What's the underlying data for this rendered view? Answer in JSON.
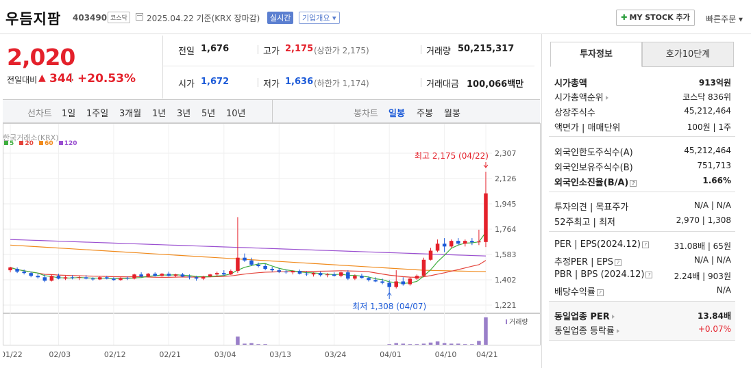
{
  "header": {
    "name": "우듬지팜",
    "code": "403490",
    "market": "코스닥",
    "date": "2025.04.22  기준(KRX 장마감)",
    "realtime": "실시간",
    "overview": "기업개요 ▾",
    "mystock": "MY STOCK 추가",
    "quick_order": "빠른주문 ▾"
  },
  "price": {
    "current": "2,020",
    "compare_label": "전일대비",
    "change": "344",
    "change_pct": "+20.53%"
  },
  "quote": {
    "prev_label": "전일",
    "prev": "1,676",
    "high_label": "고가",
    "high": "2,175",
    "upper_limit": "(상한가 2,175)",
    "volume_label": "거래량",
    "volume": "50,215,317",
    "open_label": "시가",
    "open": "1,672",
    "low_label": "저가",
    "low": "1,636",
    "lower_limit": "(하한가 1,174)",
    "amount_label": "거래대금",
    "amount": "100,066",
    "amount_unit": "백만"
  },
  "toolbar": {
    "line_label": "선차트",
    "line_items": [
      "1일",
      "1주일",
      "3개월",
      "1년",
      "3년",
      "5년",
      "10년"
    ],
    "candle_label": "봉차트",
    "candle_items": [
      "일봉",
      "주봉",
      "월봉"
    ]
  },
  "chart_data": {
    "type": "candlestick",
    "source": "한국거래소(KRX)",
    "legend": [
      "5",
      "20",
      "60",
      "120"
    ],
    "legend_colors": [
      "#3fae3f",
      "#e4433a",
      "#f08a1c",
      "#9a4fd0"
    ],
    "y_ticks": [
      2307,
      2126,
      1945,
      1764,
      1583,
      1402,
      1221
    ],
    "ylim": [
      1221,
      2307
    ],
    "x_ticks": [
      "01/22",
      "02/03",
      "02/12",
      "02/21",
      "03/04",
      "03/13",
      "03/24",
      "04/01",
      "04/10",
      "04/21"
    ],
    "high_annotation": "최고 2,175 (04/22)",
    "low_annotation": "최저 1,308 (04/07)",
    "volume_label": "거래량",
    "ohlc": [
      [
        1470,
        1495,
        1455,
        1490
      ],
      [
        1480,
        1490,
        1450,
        1460
      ],
      [
        1460,
        1475,
        1440,
        1450
      ],
      [
        1450,
        1460,
        1420,
        1430
      ],
      [
        1430,
        1445,
        1410,
        1420
      ],
      [
        1420,
        1440,
        1385,
        1395
      ],
      [
        1395,
        1440,
        1390,
        1430
      ],
      [
        1430,
        1445,
        1405,
        1410
      ],
      [
        1410,
        1430,
        1400,
        1420
      ],
      [
        1420,
        1435,
        1405,
        1415
      ],
      [
        1415,
        1430,
        1400,
        1420
      ],
      [
        1420,
        1435,
        1405,
        1410
      ],
      [
        1410,
        1420,
        1395,
        1405
      ],
      [
        1405,
        1425,
        1400,
        1420
      ],
      [
        1420,
        1430,
        1405,
        1410
      ],
      [
        1410,
        1420,
        1395,
        1400
      ],
      [
        1400,
        1420,
        1395,
        1415
      ],
      [
        1415,
        1425,
        1400,
        1410
      ],
      [
        1410,
        1445,
        1405,
        1440
      ],
      [
        1440,
        1455,
        1420,
        1425
      ],
      [
        1425,
        1450,
        1420,
        1445
      ],
      [
        1445,
        1455,
        1425,
        1430
      ],
      [
        1430,
        1450,
        1425,
        1445
      ],
      [
        1445,
        1460,
        1425,
        1430
      ],
      [
        1430,
        1445,
        1420,
        1440
      ],
      [
        1440,
        1450,
        1420,
        1425
      ],
      [
        1425,
        1440,
        1405,
        1420
      ],
      [
        1420,
        1430,
        1395,
        1410
      ],
      [
        1410,
        1430,
        1400,
        1425
      ],
      [
        1425,
        1445,
        1420,
        1440
      ],
      [
        1440,
        1460,
        1430,
        1450
      ],
      [
        1450,
        1470,
        1430,
        1440
      ],
      [
        1440,
        1475,
        1435,
        1465
      ],
      [
        1465,
        1850,
        1450,
        1560
      ],
      [
        1560,
        1590,
        1530,
        1540
      ],
      [
        1540,
        1560,
        1500,
        1510
      ],
      [
        1510,
        1525,
        1490,
        1500
      ],
      [
        1500,
        1515,
        1470,
        1480
      ],
      [
        1480,
        1495,
        1460,
        1470
      ],
      [
        1470,
        1485,
        1450,
        1460
      ],
      [
        1460,
        1475,
        1445,
        1455
      ],
      [
        1455,
        1470,
        1440,
        1465
      ],
      [
        1465,
        1475,
        1440,
        1445
      ],
      [
        1445,
        1460,
        1430,
        1440
      ],
      [
        1440,
        1455,
        1425,
        1450
      ],
      [
        1450,
        1460,
        1425,
        1435
      ],
      [
        1435,
        1450,
        1420,
        1440
      ],
      [
        1440,
        1455,
        1425,
        1430
      ],
      [
        1430,
        1460,
        1420,
        1455
      ],
      [
        1455,
        1470,
        1400,
        1410
      ],
      [
        1410,
        1440,
        1400,
        1430
      ],
      [
        1430,
        1445,
        1410,
        1415
      ],
      [
        1415,
        1425,
        1390,
        1400
      ],
      [
        1400,
        1420,
        1385,
        1390
      ],
      [
        1390,
        1410,
        1370,
        1380
      ],
      [
        1380,
        1400,
        1308,
        1350
      ],
      [
        1350,
        1470,
        1340,
        1390
      ],
      [
        1390,
        1420,
        1360,
        1370
      ],
      [
        1370,
        1420,
        1360,
        1410
      ],
      [
        1410,
        1440,
        1400,
        1430
      ],
      [
        1430,
        1560,
        1420,
        1545
      ],
      [
        1545,
        1630,
        1540,
        1610
      ],
      [
        1610,
        1690,
        1600,
        1660
      ],
      [
        1660,
        1700,
        1600,
        1640
      ],
      [
        1640,
        1690,
        1630,
        1680
      ],
      [
        1680,
        1700,
        1650,
        1660
      ],
      [
        1660,
        1690,
        1640,
        1680
      ],
      [
        1680,
        1700,
        1650,
        1670
      ],
      [
        1670,
        1760,
        1650,
        1676
      ],
      [
        1672,
        2175,
        1636,
        2020
      ]
    ],
    "volume": [
      0,
      0,
      0,
      0,
      0,
      0,
      0,
      0,
      0,
      0,
      0,
      0,
      0,
      0,
      0,
      0,
      0,
      0,
      0,
      0,
      0,
      0,
      0,
      0,
      0,
      0,
      0,
      0,
      0,
      0,
      0,
      0,
      0,
      15,
      2,
      3,
      1,
      1,
      0,
      0,
      0,
      0,
      0,
      0,
      0,
      0,
      0,
      0,
      0,
      0,
      0,
      0,
      0,
      0,
      0,
      1,
      3,
      2,
      1,
      1,
      2,
      4,
      6,
      3,
      2,
      2,
      1,
      1,
      7,
      50
    ]
  },
  "info": {
    "tab_active": "투자정보",
    "tab_other": "호가10단계",
    "rows1": [
      {
        "k": "시가총액",
        "v": "913억원"
      },
      {
        "k": "시가총액순위",
        "v": "코스닥 836위"
      },
      {
        "k": "상장주식수",
        "v": "45,212,464"
      },
      {
        "k": "액면가 | 매매단위",
        "v": "100원 | 1주"
      }
    ],
    "rows2": [
      {
        "k": "외국인한도주식수(A)",
        "v": "45,212,464"
      },
      {
        "k": "외국인보유주식수(B)",
        "v": "751,713"
      },
      {
        "k": "외국인소진율(B/A)",
        "v": "1.66%"
      }
    ],
    "rows3": [
      {
        "k": "투자의견 | 목표주가",
        "v": "N/A | N/A"
      },
      {
        "k": "52주최고 | 최저",
        "v": "2,970 | 1,308"
      }
    ],
    "rows4": [
      {
        "k": "PER | EPS(2024.12)",
        "v": "31.08배 | 65원"
      },
      {
        "k": "추정PER | EPS",
        "v": "N/A | N/A"
      },
      {
        "k": "PBR | BPS (2024.12)",
        "v": "2.24배 | 903원"
      },
      {
        "k": "배당수익률",
        "v": "N/A"
      }
    ],
    "rows5": [
      {
        "k": "동일업종 PER",
        "v": "13.84배"
      },
      {
        "k": "동일업종 등락률",
        "v": "+0.07%"
      }
    ]
  }
}
